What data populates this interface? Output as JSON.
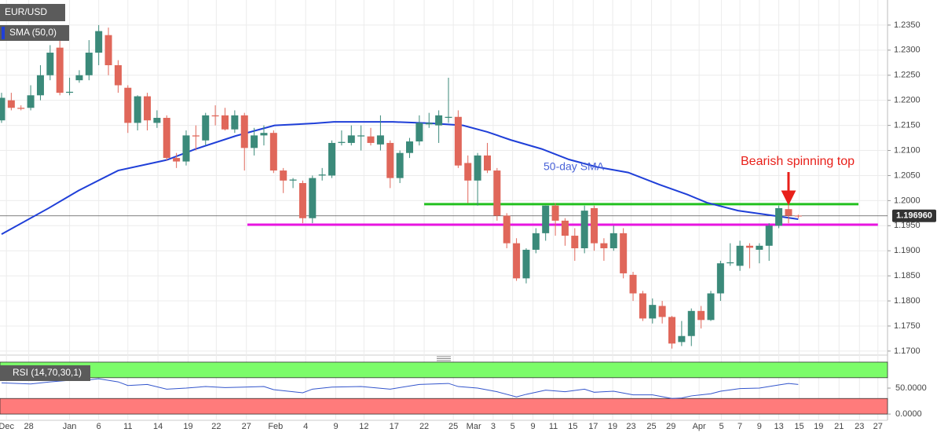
{
  "chart_data": [
    {
      "type": "candlestick",
      "title": "EUR/USD",
      "open": [
        1.216,
        1.22,
        1.2185,
        1.2185,
        1.221,
        1.225,
        1.2305,
        1.2215,
        1.224,
        1.225,
        1.2295,
        1.233,
        1.227,
        1.2225,
        1.2155,
        1.2208,
        1.2155,
        1.2165,
        1.2085,
        1.2078,
        1.213,
        1.212,
        1.217,
        1.217,
        1.2142,
        1.217,
        1.2105,
        1.213,
        1.2135,
        1.206,
        1.204,
        1.2035,
        1.1965,
        1.205,
        1.205,
        1.2115,
        1.2115,
        1.2128,
        1.2128,
        1.2112,
        1.2115,
        1.2045,
        1.2095,
        1.2118,
        1.2152,
        1.215,
        1.2165,
        1.2167,
        1.2075,
        1.204,
        1.209,
        1.206,
        1.197,
        1.1915,
        1.1845,
        1.1902,
        1.1935,
        1.199,
        1.196,
        1.193,
        1.1905,
        1.1985,
        1.1915,
        1.1905,
        1.1935,
        1.1852,
        1.1815,
        1.1765,
        1.179,
        1.1768,
        1.1718,
        1.173,
        1.178,
        1.1762,
        1.1815,
        1.1875,
        1.187,
        1.191,
        1.1902,
        1.191,
        1.195,
        1.1983,
        1.197
      ],
      "high": [
        1.2215,
        1.2215,
        1.219,
        1.223,
        1.227,
        1.231,
        1.232,
        1.2245,
        1.226,
        1.232,
        1.235,
        1.2345,
        1.228,
        1.223,
        1.221,
        1.2215,
        1.218,
        1.217,
        1.2095,
        1.214,
        1.215,
        1.2175,
        1.219,
        1.2185,
        1.218,
        1.2175,
        1.2145,
        1.215,
        1.214,
        1.2065,
        1.2045,
        1.204,
        1.205,
        1.2065,
        1.212,
        1.214,
        1.215,
        1.215,
        1.2145,
        1.217,
        1.212,
        1.21,
        1.2125,
        1.217,
        1.2175,
        1.218,
        1.2245,
        1.218,
        1.209,
        1.2095,
        1.2115,
        1.2065,
        1.1975,
        1.1925,
        1.1905,
        1.1945,
        1.199,
        1.1995,
        1.1965,
        1.1945,
        1.199,
        1.199,
        1.1925,
        1.195,
        1.1945,
        1.1858,
        1.182,
        1.1805,
        1.18,
        1.177,
        1.176,
        1.1785,
        1.179,
        1.182,
        1.188,
        1.1915,
        1.192,
        1.1915,
        1.1915,
        1.1955,
        1.199,
        1.1995,
        1.1972
      ],
      "low": [
        1.2155,
        1.218,
        1.218,
        1.218,
        1.22,
        1.224,
        1.221,
        1.221,
        1.2235,
        1.224,
        1.227,
        1.225,
        1.2215,
        1.2135,
        1.214,
        1.214,
        1.2145,
        1.208,
        1.2065,
        1.207,
        1.21,
        1.211,
        1.215,
        1.214,
        1.2135,
        1.206,
        1.209,
        1.211,
        1.2055,
        1.2015,
        1.2025,
        1.1955,
        1.1955,
        1.204,
        1.2045,
        1.211,
        1.211,
        1.21,
        1.211,
        1.21,
        1.2025,
        1.2035,
        1.2085,
        1.211,
        1.2145,
        1.2115,
        1.2155,
        1.2065,
        1.1995,
        1.199,
        1.2055,
        1.196,
        1.1905,
        1.184,
        1.1835,
        1.1895,
        1.192,
        1.193,
        1.191,
        1.188,
        1.1895,
        1.19,
        1.188,
        1.19,
        1.1845,
        1.18,
        1.176,
        1.1755,
        1.1755,
        1.1705,
        1.171,
        1.171,
        1.1745,
        1.176,
        1.18,
        1.187,
        1.186,
        1.1865,
        1.1875,
        1.188,
        1.1945,
        1.1955,
        1.1965
      ],
      "close": [
        1.2205,
        1.2185,
        1.2183,
        1.221,
        1.225,
        1.2295,
        1.2215,
        1.2217,
        1.225,
        1.2295,
        1.2338,
        1.227,
        1.223,
        1.2155,
        1.2208,
        1.216,
        1.2165,
        1.2085,
        1.2078,
        1.213,
        1.2128,
        1.217,
        1.2168,
        1.2142,
        1.217,
        1.2105,
        1.213,
        1.2135,
        1.206,
        1.204,
        1.2042,
        1.1965,
        1.2045,
        1.2052,
        1.2115,
        1.2117,
        1.213,
        1.213,
        1.2115,
        1.213,
        1.2045,
        1.2095,
        1.2118,
        1.2155,
        1.2155,
        1.217,
        1.2167,
        1.207,
        1.204,
        1.209,
        1.206,
        1.197,
        1.1915,
        1.1845,
        1.1902,
        1.1935,
        1.199,
        1.196,
        1.193,
        1.1905,
        1.198,
        1.1915,
        1.1905,
        1.1935,
        1.1855,
        1.1815,
        1.1765,
        1.1792,
        1.1768,
        1.1715,
        1.173,
        1.178,
        1.1762,
        1.1815,
        1.1875,
        1.1877,
        1.191,
        1.1906,
        1.191,
        1.195,
        1.1985,
        1.197,
        1.19696
      ],
      "up_color": "#3b8a7a",
      "down_color": "#e0675a",
      "xlim": [
        -0.16,
        91.19
      ],
      "xticks": [
        {
          "value": 0.5,
          "label": "Dec"
        },
        {
          "value": 2.8,
          "label": "28"
        },
        {
          "value": 7.0,
          "label": "Jan"
        },
        {
          "value": 10.0,
          "label": "6"
        },
        {
          "value": 13.0,
          "label": "11"
        },
        {
          "value": 16.1,
          "label": "14"
        },
        {
          "value": 19.2,
          "label": "19"
        },
        {
          "value": 22.1,
          "label": "22"
        },
        {
          "value": 25.2,
          "label": "27"
        },
        {
          "value": 28.2,
          "label": "Feb"
        },
        {
          "value": 31.3,
          "label": "4"
        },
        {
          "value": 34.4,
          "label": "9"
        },
        {
          "value": 37.3,
          "label": "12"
        },
        {
          "value": 40.4,
          "label": "17"
        },
        {
          "value": 43.5,
          "label": "22"
        },
        {
          "value": 46.5,
          "label": "25"
        },
        {
          "value": 48.6,
          "label": "Mar"
        },
        {
          "value": 50.6,
          "label": "3"
        },
        {
          "value": 52.6,
          "label": "5"
        },
        {
          "value": 54.7,
          "label": "9"
        },
        {
          "value": 56.8,
          "label": "11"
        },
        {
          "value": 58.8,
          "label": "15"
        },
        {
          "value": 60.9,
          "label": "17"
        },
        {
          "value": 62.9,
          "label": "19"
        },
        {
          "value": 64.8,
          "label": "23"
        },
        {
          "value": 66.9,
          "label": "25"
        },
        {
          "value": 68.9,
          "label": "29"
        },
        {
          "value": 71.8,
          "label": "Apr"
        },
        {
          "value": 74.1,
          "label": "5"
        },
        {
          "value": 76.0,
          "label": "7"
        },
        {
          "value": 78.0,
          "label": "9"
        },
        {
          "value": 80.0,
          "label": "13"
        },
        {
          "value": 82.1,
          "label": "15"
        },
        {
          "value": 84.1,
          "label": "19"
        },
        {
          "value": 86.2,
          "label": "21"
        },
        {
          "value": 88.3,
          "label": "23"
        },
        {
          "value": 90.2,
          "label": "27"
        }
      ],
      "ylim": [
        1.1692,
        1.24
      ],
      "yticks": [
        {
          "value": 1.17,
          "label": "1.1700"
        },
        {
          "value": 1.175,
          "label": "1.1750"
        },
        {
          "value": 1.18,
          "label": "1.1800"
        },
        {
          "value": 1.185,
          "label": "1.1850"
        },
        {
          "value": 1.19,
          "label": "1.1900"
        },
        {
          "value": 1.195,
          "label": "1.1950"
        },
        {
          "value": 1.2,
          "label": "1.2000"
        },
        {
          "value": 1.205,
          "label": "1.2050"
        },
        {
          "value": 1.21,
          "label": "1.2100"
        },
        {
          "value": 1.215,
          "label": "1.2150"
        },
        {
          "value": 1.22,
          "label": "1.2200"
        },
        {
          "value": 1.225,
          "label": "1.2250"
        },
        {
          "value": 1.23,
          "label": "1.2300"
        },
        {
          "value": 1.235,
          "label": "1.2350"
        }
      ],
      "grid": true,
      "overlay": {
        "name": "SMA (50,0)",
        "color": "#1f3fd8",
        "x": [
          0,
          4.85,
          7.92,
          12.0,
          17.0,
          20.0,
          24.1,
          28.1,
          32.2,
          34.2,
          40.3,
          44.3,
          47.5,
          50.0,
          52.4,
          55.6,
          58.4,
          61.3,
          64.5,
          67.7,
          70.6,
          72.6,
          75.8,
          79.1,
          82
        ],
        "values": [
          1.1933,
          1.1985,
          1.202,
          1.206,
          1.2081,
          1.2103,
          1.2129,
          1.215,
          1.2154,
          1.2157,
          1.2157,
          1.2154,
          1.215,
          1.2137,
          1.2121,
          1.2103,
          1.2082,
          1.2067,
          1.2056,
          1.2032,
          1.2012,
          1.1996,
          1.198,
          1.1971,
          1.1963
        ]
      },
      "levels": [
        {
          "value": 1.1993,
          "x": [
            43.5,
            88.2
          ],
          "color": "#22c01f"
        },
        {
          "value": 1.1952,
          "x": [
            25.3,
            90.2
          ],
          "color": "#e815e0"
        }
      ],
      "last_price": {
        "value": 1.19696,
        "label": "1.196960"
      },
      "annotations": [
        {
          "text": "50-day SMA",
          "color": "#4a63d8"
        },
        {
          "text": "Bearish spinning top",
          "color": "#e8201a"
        }
      ]
    },
    {
      "type": "line",
      "title": "RSI (14,70,30,1)",
      "series": [
        {
          "color": "#3355cc",
          "x": [
            0,
            3,
            5,
            7,
            9,
            10,
            12,
            13,
            15,
            17,
            19,
            21,
            23,
            25,
            27,
            28,
            31,
            32,
            34,
            37,
            40,
            43,
            46,
            47,
            49,
            51,
            53,
            54,
            56,
            58,
            60,
            61,
            63,
            65,
            67,
            69,
            70,
            71,
            73,
            74,
            76,
            78,
            80,
            81,
            82
          ],
          "values": [
            60,
            58,
            62,
            65,
            66,
            68,
            62,
            55,
            57,
            48,
            50,
            53,
            51,
            52,
            53,
            47,
            41,
            48,
            52,
            53,
            48,
            57,
            59,
            53,
            50,
            43,
            33,
            38,
            46,
            43,
            48,
            42,
            44,
            37,
            37,
            30,
            31,
            35,
            39,
            44,
            49,
            50,
            56,
            59,
            57
          ]
        }
      ],
      "bands": [
        {
          "from": 70,
          "to": 100,
          "color": "#7cfc6a"
        },
        {
          "from": 0,
          "to": 30,
          "color": "#ff7b7b"
        }
      ],
      "ylim": [
        -12,
        104.5
      ],
      "yticks": [
        {
          "value": 50,
          "label": "50.0000"
        },
        {
          "value": 0,
          "label": "0.0000"
        }
      ]
    }
  ]
}
